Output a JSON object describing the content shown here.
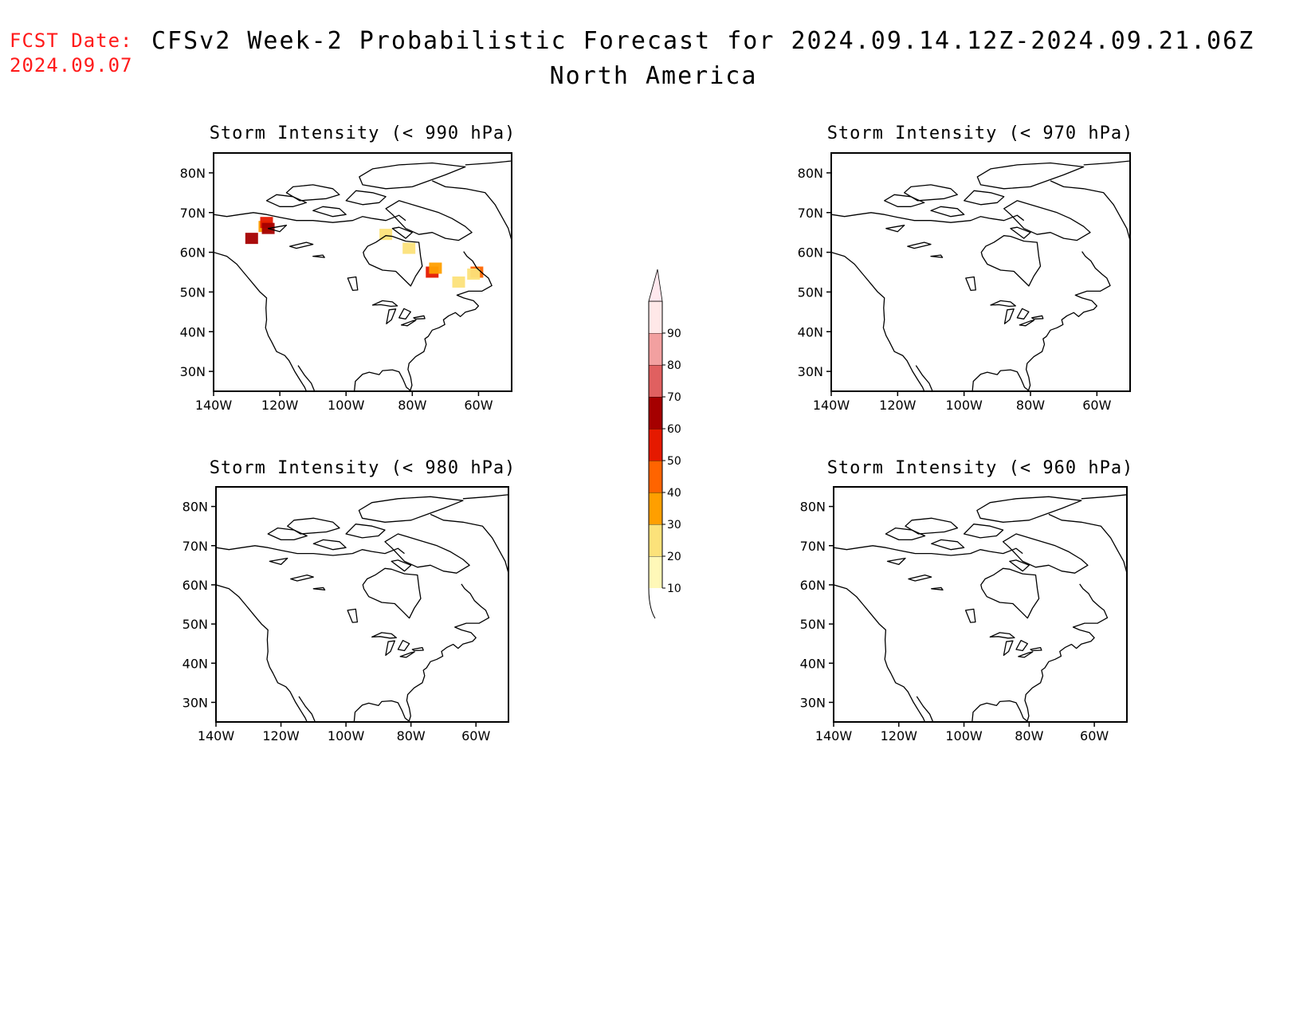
{
  "header": {
    "fcst_label": "FCST Date:",
    "fcst_date": "2024.09.07",
    "title": "CFSv2 Week-2 Probabilistic Forecast for 2024.09.14.12Z-2024.09.21.06Z",
    "subtitle": "North America"
  },
  "panels": [
    {
      "title": "Storm Intensity (< 990 hPa)",
      "threshold_hPa": 990,
      "has_data": true
    },
    {
      "title": "Storm Intensity (< 970 hPa)",
      "threshold_hPa": 970,
      "has_data": false
    },
    {
      "title": "Storm Intensity (< 980 hPa)",
      "threshold_hPa": 980,
      "has_data": false
    },
    {
      "title": "Storm Intensity (< 960 hPa)",
      "threshold_hPa": 960,
      "has_data": false
    }
  ],
  "axes": {
    "lat_ticks": [
      "80N",
      "70N",
      "60N",
      "50N",
      "40N",
      "30N"
    ],
    "lon_ticks": [
      "140W",
      "120W",
      "100W",
      "80W",
      "60W"
    ],
    "lat_range": [
      25,
      85
    ],
    "lon_range": [
      -140,
      -50
    ]
  },
  "colorbar": {
    "labels": [
      "10",
      "20",
      "30",
      "40",
      "50",
      "60",
      "70",
      "80",
      "90"
    ],
    "colors": [
      "#fff8b8",
      "#fce27a",
      "#ff9f00",
      "#ff6400",
      "#e51900",
      "#a50000",
      "#e06060",
      "#f2a0a0",
      "#ffe8e8"
    ]
  },
  "chart_data": {
    "type": "heatmap",
    "description_units": "probability (%)",
    "panel": "Storm Intensity (< 990 hPa)",
    "points": [
      {
        "lon": -124.5,
        "lat": 66.5,
        "value": 35
      },
      {
        "lon": -124,
        "lat": 67.5,
        "value": 55
      },
      {
        "lon": -123.5,
        "lat": 66,
        "value": 65
      },
      {
        "lon": -128.5,
        "lat": 63.5,
        "value": 65
      },
      {
        "lon": -88,
        "lat": 64.5,
        "value": 25
      },
      {
        "lon": -81,
        "lat": 61,
        "value": 20
      },
      {
        "lon": -74,
        "lat": 55,
        "value": 50
      },
      {
        "lon": -73,
        "lat": 56,
        "value": 30
      },
      {
        "lon": -66,
        "lat": 52.5,
        "value": 25
      },
      {
        "lon": -60.5,
        "lat": 55,
        "value": 45
      },
      {
        "lon": -61.5,
        "lat": 54.5,
        "value": 20
      }
    ]
  }
}
